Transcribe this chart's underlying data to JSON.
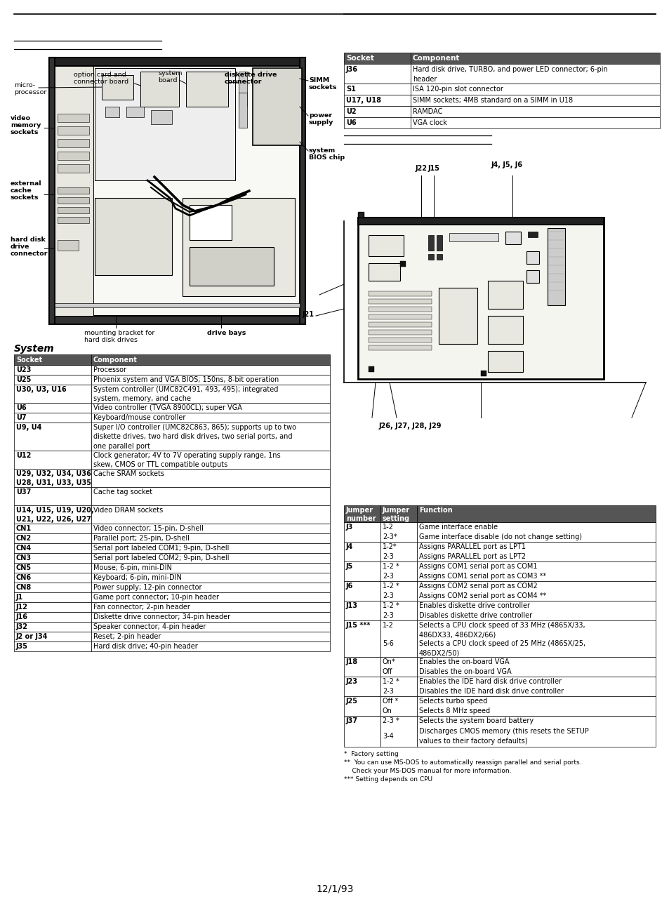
{
  "bg_color": "#ffffff",
  "page_date": "12/1/93",
  "top_table_right": {
    "headers": [
      "Socket",
      "Component"
    ],
    "rows": [
      [
        "J36",
        "Hard disk drive, TURBO, and power LED connector; 6-pin\nheader"
      ],
      [
        "S1",
        "ISA 120-pin slot connector"
      ],
      [
        "U17, U18",
        "SIMM sockets; 4MB standard on a SIMM in U18"
      ],
      [
        "U2",
        "RAMDAC"
      ],
      [
        "U6",
        "VGA clock"
      ]
    ]
  },
  "system_table": {
    "title": "System",
    "headers": [
      "Socket",
      "Component"
    ],
    "rows": [
      [
        "U23",
        "Processor"
      ],
      [
        "U25",
        "Phoenix system and VGA BIOS; 150ns, 8-bit operation"
      ],
      [
        "U30, U3, U16",
        "System controller (UMC82C491, 493, 495); integrated\nsystem, memory, and cache"
      ],
      [
        "U6",
        "Video controller (TVGA 8900CL); super VGA"
      ],
      [
        "U7",
        "Keyboard/mouse controller"
      ],
      [
        "U9, U4",
        "Super I/O controller (UMC82C863, 865); supports up to two\ndiskette drives, two hard disk drives, two serial ports, and\none parallel port"
      ],
      [
        "U12",
        "Clock generator; 4V to 7V operating supply range, 1ns\nskew, CMOS or TTL compatible outputs"
      ],
      [
        "U29, U32, U34, U36\nU28, U31, U33, U35",
        "Cache SRAM sockets"
      ],
      [
        "U37",
        "Cache tag socket"
      ],
      [
        "U14, U15, U19, U20,\nU21, U22, U26, U27",
        "Video DRAM sockets"
      ],
      [
        "CN1",
        "Video connector; 15-pin, D-shell"
      ],
      [
        "CN2",
        "Parallel port; 25-pin, D-shell"
      ],
      [
        "CN4",
        "Serial port labeled COM1; 9-pin, D-shell"
      ],
      [
        "CN3",
        "Serial port labeled COM2; 9-pin, D-shell"
      ],
      [
        "CN5",
        "Mouse; 6-pin, mini-DIN"
      ],
      [
        "CN6",
        "Keyboard; 6-pin, mini-DIN"
      ],
      [
        "CN8",
        "Power supply; 12-pin connector"
      ],
      [
        "J1",
        "Game port connector; 10-pin header"
      ],
      [
        "J12",
        "Fan connector; 2-pin header"
      ],
      [
        "J16",
        "Diskette drive connector; 34-pin header"
      ],
      [
        "J32",
        "Speaker connector; 4-pin header"
      ],
      [
        "J2 or J34",
        "Reset; 2-pin header"
      ],
      [
        "J35",
        "Hard disk drive; 40-pin header"
      ]
    ]
  },
  "jumper_table": {
    "headers": [
      "Jumper\nnumber",
      "Jumper\nsetting",
      "Function"
    ],
    "rows": [
      [
        "J3",
        "1-2\n2-3*",
        "Game interface enable\nGame interface disable (do not change setting)"
      ],
      [
        "J4",
        "1-2*\n2-3",
        "Assigns PARALLEL port as LPT1\nAssigns PARALLEL port as LPT2"
      ],
      [
        "J5",
        "1-2 *\n2-3",
        "Assigns COM1 serial port as COM1\nAssigns COM1 serial port as COM3 **"
      ],
      [
        "J6",
        "1-2 *\n2-3",
        "Assigns COM2 serial port as COM2\nAssigns COM2 serial port as COM4 **"
      ],
      [
        "J13",
        "1-2 *\n2-3",
        "Enables diskette drive controller\nDisables diskette drive controller"
      ],
      [
        "J15 ***",
        "1-2\n\n5-6",
        "Selects a CPU clock speed of 33 MHz (486SX/33,\n486DX33, 486DX2/66)\nSelects a CPU clock speed of 25 MHz (486SX/25,\n486DX2/50)"
      ],
      [
        "J18",
        "On*\nOff",
        "Enables the on-board VGA\nDisables the on-board VGA"
      ],
      [
        "J23",
        "1-2 *\n2-3",
        "Enables the IDE hard disk drive controller\nDisables the IDE hard disk drive controller"
      ],
      [
        "J25",
        "Off *\nOn",
        "Selects turbo speed\nSelects 8 MHz speed"
      ],
      [
        "J37",
        "2-3 *\n3-4",
        "Selects the system board battery\nDischarges CMOS memory (this resets the SETUP\nvalues to their factory defaults)"
      ]
    ]
  },
  "footnotes": [
    "*  Factory setting",
    "**  You can use MS-DOS to automatically reassign parallel and serial ports.",
    "    Check your MS-DOS manual for more information.",
    "*** Setting depends on CPU"
  ]
}
